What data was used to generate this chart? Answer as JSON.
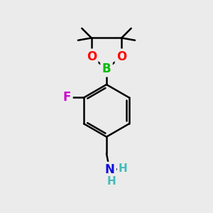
{
  "background_color": "#ebebeb",
  "bond_color": "#000000",
  "bond_width": 1.8,
  "atom_colors": {
    "B": "#00bb00",
    "O": "#ff0000",
    "F": "#cc00cc",
    "N": "#1010dd",
    "H": "#44bbbb",
    "C": "#000000"
  },
  "font_size_atoms": 12,
  "fig_size": [
    3.0,
    3.0
  ],
  "dpi": 100
}
